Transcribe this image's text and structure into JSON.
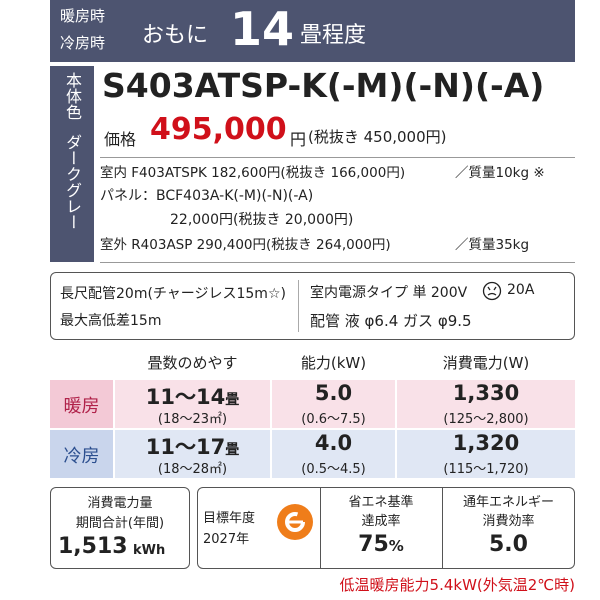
{
  "header": {
    "label_heat": "暖房時",
    "label_cool": "冷房時",
    "prefix": "おもに",
    "size": "14",
    "suffix": "畳程度"
  },
  "color_box": {
    "label": "本体色",
    "color": "ダークグレー"
  },
  "model": "S403ATSP-K(-M)(-N)(-A)",
  "price": {
    "label": "価格",
    "value": "495,000",
    "unit": "円",
    "tax_excluded": "(税抜き 450,000円)"
  },
  "components": [
    {
      "text": "室内 F403ATSPK 182,600円(税抜き 166,000円)",
      "weight": "／質量10kg ※"
    },
    {
      "text": "パネル：BCF403A-K(-M)(-N)(-A)"
    },
    {
      "text": "22,000円(税抜き 20,000円)"
    },
    {
      "text": "室外 R403ASP 290,400円(税抜き 264,000円)",
      "weight": "／質量35kg"
    }
  ],
  "piping": {
    "left": [
      "長尺配管20m(チャージレス15m☆)",
      "最大高低差15m"
    ],
    "power": "室内電源タイプ 単 200V",
    "amp": "20A",
    "pipe": "配管 液 φ6.4 ガス φ9.5"
  },
  "table": {
    "headers": [
      "畳数のめやす",
      "能力(kW)",
      "消費電力(W)"
    ],
    "rows": [
      {
        "label": "暖房",
        "cells": [
          {
            "main": "11～14",
            "unit": "畳",
            "sub": "(18～23㎡)"
          },
          {
            "main": "5.0",
            "sub": "(0.6～7.5)"
          },
          {
            "main": "1,330",
            "sub": "(125～2,800)"
          }
        ]
      },
      {
        "label": "冷房",
        "cells": [
          {
            "main": "11～17",
            "unit": "畳",
            "sub": "(18～28㎡)"
          },
          {
            "main": "4.0",
            "sub": "(0.5～4.5)"
          },
          {
            "main": "1,320",
            "sub": "(115～1,720)"
          }
        ]
      }
    ]
  },
  "energy": {
    "label1": "消費電力量",
    "label2": "期間合計(年間)",
    "value": "1,513",
    "unit": "kWh"
  },
  "target": {
    "label": "目標年度",
    "year": "2027年"
  },
  "achievement": {
    "label1": "省エネ基準",
    "label2": "達成率",
    "value": "75",
    "unit": "%"
  },
  "apf": {
    "label1": "通年エネルギー",
    "label2": "消費効率",
    "value": "5.0"
  },
  "footer": "低温暖房能力5.4kW(外気温2℃時)"
}
